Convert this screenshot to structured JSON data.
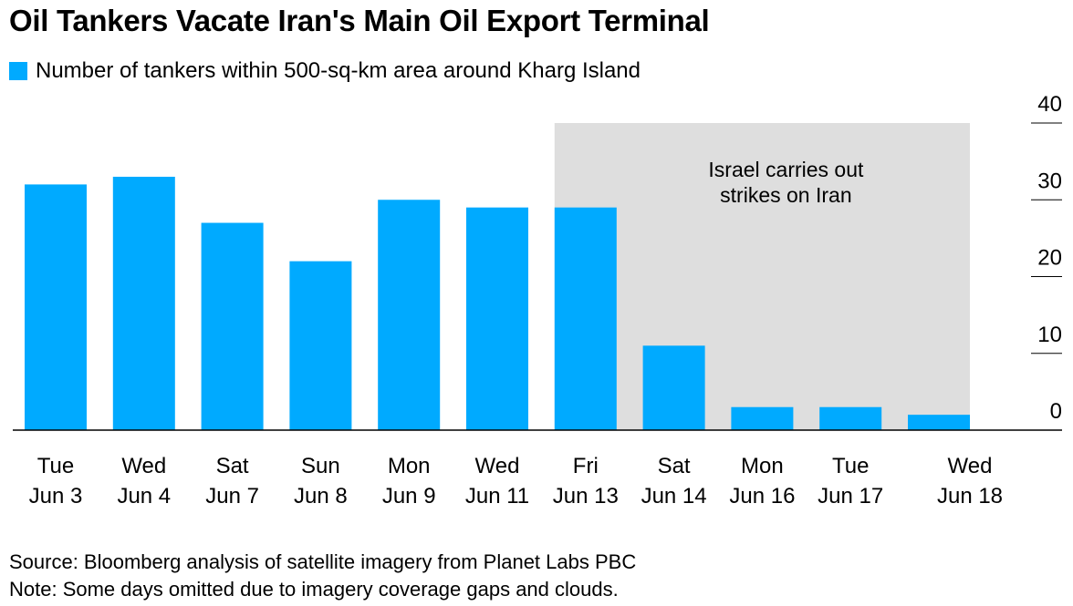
{
  "colors": {
    "bar": "#00AAFF",
    "shade": "#DEDEDE",
    "axis": "#000000"
  },
  "chart_data": {
    "type": "bar",
    "title": "Oil Tankers Vacate Iran's Main Oil Export Terminal",
    "legend": [
      "Number of tankers within 500-sq-km area around Kharg Island"
    ],
    "categories": [
      {
        "day": "Tue",
        "date": "Jun 3"
      },
      {
        "day": "Wed",
        "date": "Jun 4"
      },
      {
        "day": "Sat",
        "date": "Jun 7"
      },
      {
        "day": "Sun",
        "date": "Jun 8"
      },
      {
        "day": "Mon",
        "date": "Jun 9"
      },
      {
        "day": "Wed",
        "date": "Jun 11"
      },
      {
        "day": "Fri",
        "date": "Jun 13"
      },
      {
        "day": "Sat",
        "date": "Jun 14"
      },
      {
        "day": "Mon",
        "date": "Jun 16"
      },
      {
        "day": "Tue",
        "date": "Jun 17"
      },
      {
        "day": "Wed",
        "date": "Jun 18"
      }
    ],
    "values": [
      32,
      33,
      27,
      22,
      30,
      29,
      29,
      11,
      3,
      3,
      2
    ],
    "ylim": [
      0,
      40
    ],
    "yticks": [
      "0",
      "10",
      "20",
      "30",
      "40"
    ],
    "y_axis_side": "right",
    "shaded_region": {
      "from_index": 6,
      "to_index": 10,
      "label": [
        "Israel carries out",
        "strikes on Iran"
      ]
    }
  },
  "footer": {
    "source": "Source: Bloomberg analysis of satellite imagery from Planet Labs PBC",
    "note": "Note: Some days omitted due to imagery coverage gaps and clouds."
  }
}
